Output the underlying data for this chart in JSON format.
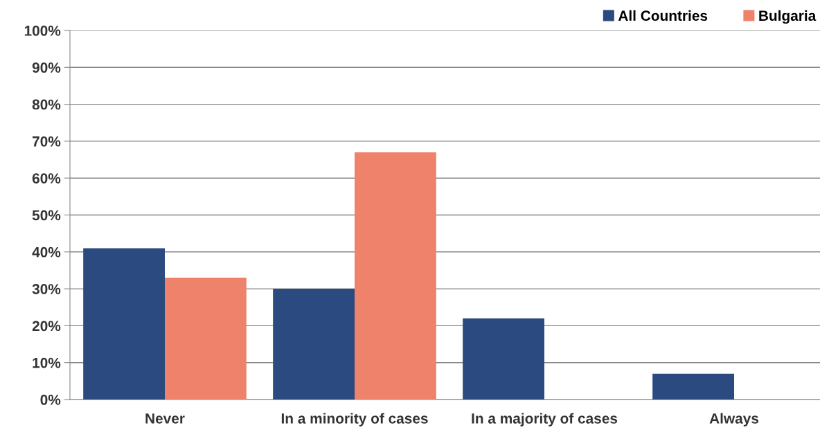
{
  "chart_data": {
    "type": "bar",
    "categories": [
      "Never",
      "In a minority of cases",
      "In a majority of cases",
      "Always"
    ],
    "series": [
      {
        "name": "All Countries",
        "color": "#2a4a80",
        "values": [
          41,
          30,
          22,
          7
        ]
      },
      {
        "name": "Bulgaria",
        "color": "#ee826b",
        "values": [
          33,
          67,
          0,
          0
        ]
      }
    ],
    "ylim": [
      0,
      100
    ],
    "yticks": [
      {
        "value": 0,
        "label": "0%"
      },
      {
        "value": 10,
        "label": "10%"
      },
      {
        "value": 20,
        "label": "20%"
      },
      {
        "value": 30,
        "label": "30%"
      },
      {
        "value": 40,
        "label": "40%"
      },
      {
        "value": 50,
        "label": "50%"
      },
      {
        "value": 60,
        "label": "60%"
      },
      {
        "value": 70,
        "label": "70%"
      },
      {
        "value": 80,
        "label": "80%"
      },
      {
        "value": 90,
        "label": "90%"
      },
      {
        "value": 100,
        "label": "100%"
      }
    ],
    "grid": "y",
    "legend": "top right"
  }
}
